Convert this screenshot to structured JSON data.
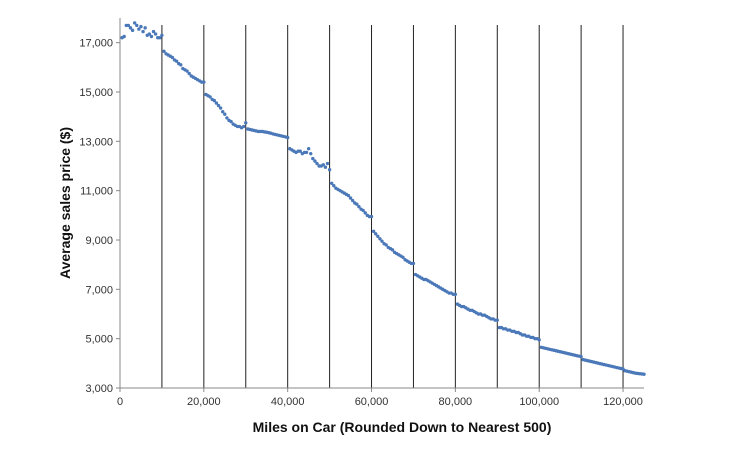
{
  "chart_data": {
    "type": "scatter",
    "title": "",
    "xlabel": "Miles on Car (Rounded Down to Nearest 500)",
    "ylabel": "Average sales price ($)",
    "xlim": [
      0,
      125000
    ],
    "ylim": [
      3000,
      18000
    ],
    "x_ticks": [
      0,
      20000,
      40000,
      60000,
      80000,
      100000,
      120000
    ],
    "x_tick_labels": [
      "0",
      "20,000",
      "40,000",
      "60,000",
      "80,000",
      "100,000",
      "120,000"
    ],
    "y_ticks": [
      3000,
      5000,
      7000,
      9000,
      11000,
      13000,
      15000,
      17000
    ],
    "y_tick_labels": [
      "3,000",
      "5,000",
      "7,000",
      "9,000",
      "11,000",
      "13,000",
      "15,000",
      "17,000"
    ],
    "vertical_reference_lines": [
      10000,
      20000,
      30000,
      40000,
      50000,
      60000,
      70000,
      80000,
      90000,
      100000,
      110000,
      120000
    ],
    "grid": false,
    "legend": "none",
    "marker_color": "#4a78b8",
    "line_color": "#222222",
    "series": [
      {
        "x_start": 500,
        "x_step": 500,
        "values": [
          17200,
          17250,
          17700,
          17700,
          17600,
          17500,
          17800,
          17700,
          17550,
          17650,
          17450,
          17600,
          17300,
          17350,
          17250,
          17450,
          17350,
          17200,
          17200,
          17300,
          16650,
          16550,
          16500,
          16450,
          16400,
          16300,
          16250,
          16150,
          16100,
          15950,
          15900,
          15850,
          15750,
          15650,
          15600,
          15550,
          15500,
          15450,
          15400,
          15400,
          14900,
          14850,
          14800,
          14700,
          14650,
          14550,
          14450,
          14350,
          14200,
          14100,
          13950,
          13850,
          13800,
          13700,
          13650,
          13600,
          13600,
          13550,
          13600,
          13750,
          13500,
          13480,
          13460,
          13440,
          13420,
          13400,
          13400,
          13400,
          13380,
          13370,
          13350,
          13330,
          13300,
          13280,
          13260,
          13240,
          13220,
          13200,
          13180,
          13150,
          12700,
          12650,
          12600,
          12550,
          12600,
          12600,
          12500,
          12550,
          12550,
          12700,
          12500,
          12300,
          12200,
          12100,
          12000,
          12000,
          12050,
          11950,
          12100,
          11850,
          11300,
          11200,
          11100,
          11050,
          11000,
          10950,
          10900,
          10850,
          10800,
          10700,
          10600,
          10500,
          10450,
          10350,
          10250,
          10200,
          10100,
          10000,
          9950,
          9950,
          9350,
          9250,
          9150,
          9050,
          8950,
          8850,
          8800,
          8700,
          8650,
          8600,
          8500,
          8450,
          8400,
          8350,
          8300,
          8200,
          8150,
          8100,
          8050,
          8050,
          7600,
          7550,
          7500,
          7450,
          7400,
          7400,
          7350,
          7300,
          7250,
          7200,
          7150,
          7100,
          7050,
          7000,
          6950,
          6900,
          6850,
          6850,
          6800,
          6800,
          6400,
          6350,
          6300,
          6300,
          6250,
          6200,
          6150,
          6150,
          6100,
          6050,
          6000,
          6000,
          5950,
          5950,
          5900,
          5850,
          5800,
          5800,
          5750,
          5750,
          5450,
          5450,
          5400,
          5400,
          5350,
          5350,
          5300,
          5300,
          5250,
          5250,
          5200,
          5150,
          5150,
          5100,
          5100,
          5050,
          5050,
          5000,
          5000,
          4950,
          4650,
          4630,
          4610,
          4590,
          4570,
          4550,
          4530,
          4510,
          4490,
          4470,
          4450,
          4430,
          4410,
          4390,
          4370,
          4350,
          4330,
          4310,
          4290,
          4270,
          4150,
          4130,
          4110,
          4090,
          4070,
          4050,
          4030,
          4010,
          3990,
          3970,
          3950,
          3930,
          3910,
          3890,
          3870,
          3850,
          3830,
          3810,
          3790,
          3770,
          3700,
          3680,
          3660,
          3640,
          3620,
          3600,
          3590,
          3580,
          3570,
          3560
        ]
      }
    ]
  }
}
